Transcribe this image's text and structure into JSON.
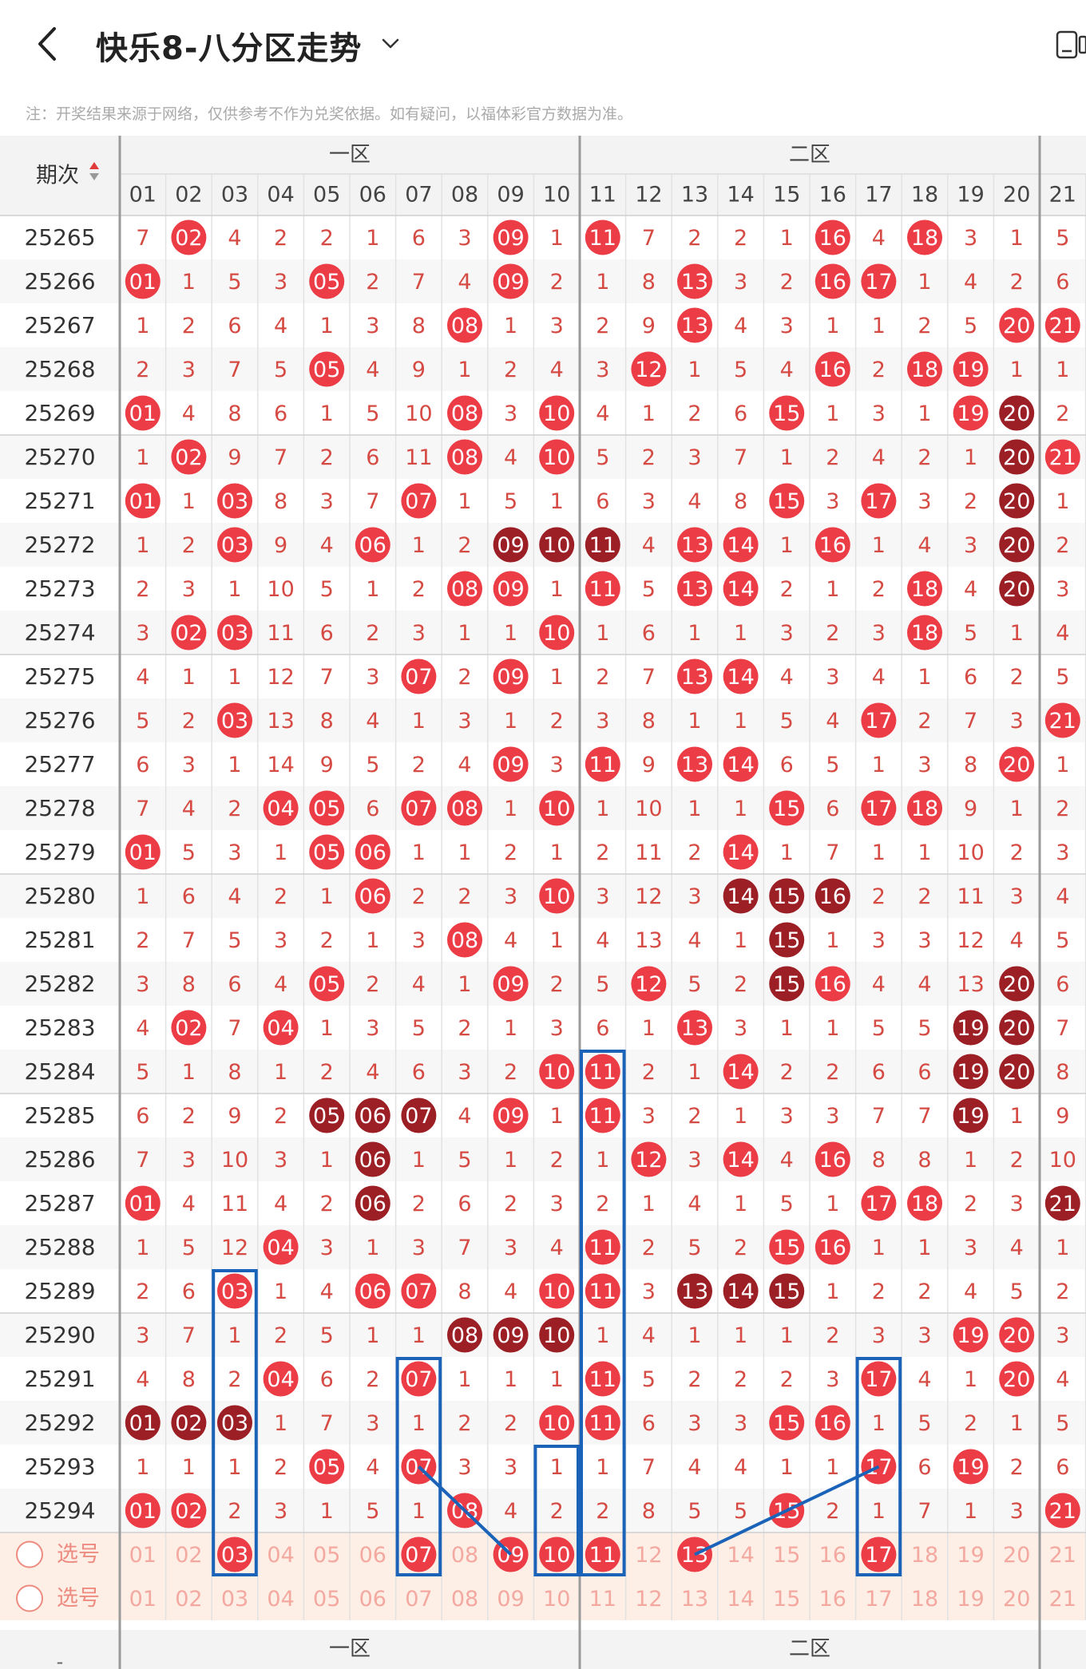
{
  "header": {
    "title": "快乐8-八分区走势",
    "note": "注：开奖结果来源于网络，仅供参考不作为兑奖依据。如有疑问，以福体彩官方数据为准。"
  },
  "table": {
    "period_header": "期次",
    "zone_labels": [
      "一区",
      "二区"
    ],
    "columns": [
      "01",
      "02",
      "03",
      "04",
      "05",
      "06",
      "07",
      "08",
      "09",
      "10",
      "11",
      "12",
      "13",
      "14",
      "15",
      "16",
      "17",
      "18",
      "19",
      "20",
      "21"
    ],
    "rows": [
      {
        "period": "25265",
        "values": [
          7,
          2,
          4,
          2,
          2,
          1,
          6,
          3,
          9,
          1,
          11,
          7,
          2,
          2,
          1,
          16,
          4,
          18,
          3,
          1,
          5
        ],
        "hits": [
          2,
          9,
          11,
          16,
          18
        ],
        "dark": []
      },
      {
        "period": "25266",
        "values": [
          1,
          1,
          5,
          3,
          5,
          2,
          7,
          4,
          9,
          2,
          1,
          8,
          13,
          3,
          2,
          16,
          17,
          1,
          4,
          2,
          6
        ],
        "hits": [
          1,
          5,
          9,
          13,
          16,
          17
        ],
        "dark": []
      },
      {
        "period": "25267",
        "values": [
          1,
          2,
          6,
          4,
          1,
          3,
          8,
          8,
          1,
          3,
          2,
          9,
          13,
          4,
          3,
          1,
          1,
          2,
          5,
          20,
          21
        ],
        "hits": [
          8,
          13,
          20,
          21
        ],
        "dark": []
      },
      {
        "period": "25268",
        "values": [
          2,
          3,
          7,
          5,
          5,
          4,
          9,
          1,
          2,
          4,
          3,
          12,
          1,
          5,
          4,
          16,
          2,
          18,
          19,
          1,
          1
        ],
        "hits": [
          5,
          12,
          16,
          18,
          19
        ],
        "dark": []
      },
      {
        "period": "25269",
        "values": [
          1,
          4,
          8,
          6,
          1,
          5,
          10,
          8,
          3,
          10,
          4,
          1,
          2,
          6,
          15,
          1,
          3,
          1,
          19,
          20,
          2
        ],
        "hits": [
          1,
          8,
          10,
          15,
          19
        ],
        "dark": [
          20
        ]
      },
      {
        "period": "25270",
        "values": [
          1,
          2,
          9,
          7,
          2,
          6,
          11,
          8,
          4,
          10,
          5,
          2,
          3,
          7,
          1,
          2,
          4,
          2,
          1,
          20,
          21
        ],
        "hits": [
          2,
          8,
          10,
          21
        ],
        "dark": [
          20
        ]
      },
      {
        "period": "25271",
        "values": [
          1,
          1,
          3,
          8,
          3,
          7,
          7,
          1,
          5,
          1,
          6,
          3,
          4,
          8,
          15,
          3,
          17,
          3,
          2,
          20,
          1
        ],
        "hits": [
          1,
          3,
          7,
          15,
          17
        ],
        "dark": [
          20
        ]
      },
      {
        "period": "25272",
        "values": [
          1,
          2,
          3,
          9,
          4,
          6,
          1,
          2,
          9,
          10,
          11,
          4,
          13,
          14,
          1,
          16,
          1,
          4,
          3,
          20,
          2
        ],
        "hits": [
          3,
          6,
          13,
          14,
          16
        ],
        "dark": [
          9,
          10,
          11,
          20
        ]
      },
      {
        "period": "25273",
        "values": [
          2,
          3,
          1,
          10,
          5,
          1,
          2,
          8,
          9,
          1,
          11,
          5,
          13,
          14,
          2,
          1,
          2,
          18,
          4,
          20,
          3
        ],
        "hits": [
          8,
          9,
          11,
          13,
          14,
          18
        ],
        "dark": [
          20
        ]
      },
      {
        "period": "25274",
        "values": [
          3,
          2,
          3,
          11,
          6,
          2,
          3,
          1,
          1,
          10,
          1,
          6,
          1,
          1,
          3,
          2,
          3,
          18,
          5,
          1,
          4
        ],
        "hits": [
          2,
          3,
          10,
          18
        ],
        "dark": []
      },
      {
        "period": "25275",
        "values": [
          4,
          1,
          1,
          12,
          7,
          3,
          7,
          2,
          9,
          1,
          2,
          7,
          13,
          14,
          4,
          3,
          4,
          1,
          6,
          2,
          5
        ],
        "hits": [
          7,
          9,
          13,
          14
        ],
        "dark": []
      },
      {
        "period": "25276",
        "values": [
          5,
          2,
          3,
          13,
          8,
          4,
          1,
          3,
          1,
          2,
          3,
          8,
          1,
          1,
          5,
          4,
          17,
          2,
          7,
          3,
          21
        ],
        "hits": [
          3,
          17,
          21
        ],
        "dark": []
      },
      {
        "period": "25277",
        "values": [
          6,
          3,
          1,
          14,
          9,
          5,
          2,
          4,
          9,
          3,
          11,
          9,
          13,
          14,
          6,
          5,
          1,
          3,
          8,
          20,
          1
        ],
        "hits": [
          9,
          11,
          13,
          14,
          20
        ],
        "dark": []
      },
      {
        "period": "25278",
        "values": [
          7,
          4,
          2,
          4,
          5,
          6,
          7,
          8,
          1,
          10,
          1,
          10,
          1,
          1,
          15,
          6,
          17,
          18,
          9,
          1,
          2
        ],
        "hits": [
          4,
          5,
          7,
          8,
          10,
          15,
          17,
          18
        ],
        "dark": []
      },
      {
        "period": "25279",
        "values": [
          1,
          5,
          3,
          1,
          5,
          6,
          1,
          1,
          2,
          1,
          2,
          11,
          2,
          14,
          1,
          7,
          1,
          1,
          10,
          2,
          3
        ],
        "hits": [
          1,
          5,
          6,
          14
        ],
        "dark": []
      },
      {
        "period": "25280",
        "values": [
          1,
          6,
          4,
          2,
          1,
          6,
          2,
          2,
          3,
          10,
          3,
          12,
          3,
          14,
          15,
          16,
          2,
          2,
          11,
          3,
          4
        ],
        "hits": [
          6,
          10
        ],
        "dark": [
          14,
          15,
          16
        ]
      },
      {
        "period": "25281",
        "values": [
          2,
          7,
          5,
          3,
          2,
          1,
          3,
          8,
          4,
          1,
          4,
          13,
          4,
          1,
          15,
          1,
          3,
          3,
          12,
          4,
          5
        ],
        "hits": [
          8
        ],
        "dark": [
          15
        ]
      },
      {
        "period": "25282",
        "values": [
          3,
          8,
          6,
          4,
          5,
          2,
          4,
          1,
          9,
          2,
          5,
          12,
          5,
          2,
          15,
          16,
          4,
          4,
          13,
          20,
          6
        ],
        "hits": [
          5,
          9,
          12,
          16
        ],
        "dark": [
          15,
          20
        ]
      },
      {
        "period": "25283",
        "values": [
          4,
          2,
          7,
          4,
          1,
          3,
          5,
          2,
          1,
          3,
          6,
          1,
          13,
          3,
          1,
          1,
          5,
          5,
          19,
          20,
          7
        ],
        "hits": [
          2,
          4,
          13
        ],
        "dark": [
          19,
          20
        ]
      },
      {
        "period": "25284",
        "values": [
          5,
          1,
          8,
          1,
          2,
          4,
          6,
          3,
          2,
          10,
          11,
          2,
          1,
          14,
          2,
          2,
          6,
          6,
          19,
          20,
          8
        ],
        "hits": [
          10,
          11,
          14
        ],
        "dark": [
          19,
          20
        ]
      },
      {
        "period": "25285",
        "values": [
          6,
          2,
          9,
          2,
          5,
          6,
          7,
          4,
          9,
          1,
          11,
          3,
          2,
          1,
          3,
          3,
          7,
          7,
          19,
          1,
          9
        ],
        "hits": [
          9,
          11
        ],
        "dark": [
          5,
          6,
          7,
          19
        ]
      },
      {
        "period": "25286",
        "values": [
          7,
          3,
          10,
          3,
          1,
          6,
          1,
          5,
          1,
          2,
          1,
          12,
          3,
          14,
          4,
          16,
          8,
          8,
          1,
          2,
          10
        ],
        "hits": [
          12,
          14,
          16
        ],
        "dark": [
          6
        ]
      },
      {
        "period": "25287",
        "values": [
          1,
          4,
          11,
          4,
          2,
          6,
          2,
          6,
          2,
          3,
          2,
          1,
          4,
          1,
          5,
          1,
          17,
          18,
          2,
          3,
          21
        ],
        "hits": [
          1,
          17,
          18
        ],
        "dark": [
          6,
          21
        ]
      },
      {
        "period": "25288",
        "values": [
          1,
          5,
          12,
          4,
          3,
          1,
          3,
          7,
          3,
          4,
          11,
          2,
          5,
          2,
          15,
          16,
          1,
          1,
          3,
          4,
          1
        ],
        "hits": [
          4,
          11,
          15,
          16
        ],
        "dark": []
      },
      {
        "period": "25289",
        "values": [
          2,
          6,
          3,
          1,
          4,
          6,
          7,
          8,
          4,
          10,
          11,
          3,
          13,
          14,
          15,
          1,
          2,
          2,
          4,
          5,
          2
        ],
        "hits": [
          3,
          6,
          7,
          10,
          11
        ],
        "dark": [
          13,
          14,
          15
        ]
      },
      {
        "period": "25290",
        "values": [
          3,
          7,
          1,
          2,
          5,
          1,
          1,
          8,
          9,
          10,
          1,
          4,
          1,
          1,
          1,
          2,
          3,
          3,
          19,
          20,
          3
        ],
        "hits": [
          19,
          20
        ],
        "dark": [
          8,
          9,
          10
        ]
      },
      {
        "period": "25291",
        "values": [
          4,
          8,
          2,
          4,
          6,
          2,
          7,
          1,
          1,
          1,
          11,
          5,
          2,
          2,
          2,
          3,
          17,
          4,
          1,
          20,
          4
        ],
        "hits": [
          4,
          7,
          11,
          17,
          20
        ],
        "dark": []
      },
      {
        "period": "25292",
        "values": [
          1,
          2,
          3,
          1,
          7,
          3,
          1,
          2,
          2,
          10,
          11,
          6,
          3,
          3,
          15,
          16,
          1,
          5,
          2,
          1,
          5
        ],
        "hits": [
          10,
          11,
          15,
          16
        ],
        "dark": [
          1,
          2,
          3
        ]
      },
      {
        "period": "25293",
        "values": [
          1,
          1,
          1,
          2,
          5,
          4,
          7,
          3,
          3,
          1,
          1,
          7,
          4,
          4,
          1,
          1,
          17,
          6,
          19,
          2,
          6
        ],
        "hits": [
          5,
          7,
          17,
          19
        ],
        "dark": []
      },
      {
        "period": "25294",
        "values": [
          1,
          2,
          2,
          3,
          1,
          5,
          1,
          8,
          4,
          2,
          2,
          8,
          5,
          5,
          15,
          2,
          1,
          7,
          1,
          3,
          21
        ],
        "hits": [
          1,
          2,
          8,
          15,
          21
        ],
        "dark": []
      }
    ],
    "select_label": "选号",
    "select_rows": [
      {
        "label": "选号",
        "picked": [
          3,
          7,
          9,
          10,
          11,
          13,
          17
        ]
      },
      {
        "label": "选号",
        "picked": []
      }
    ]
  },
  "colors": {
    "hit": "#ec3c46",
    "dark": "#9b1f24",
    "number_text": "#d64a44",
    "grid_line": "#e2e2e2",
    "zone_divider": "#9a9a9a",
    "select_bg": "#fdeee6",
    "mark_blue": "#1a63b8"
  },
  "icons": [
    "back-arrow-icon",
    "chevron-down-icon",
    "device-icon",
    "sort-arrows-icon",
    "radio-circle-icon"
  ]
}
